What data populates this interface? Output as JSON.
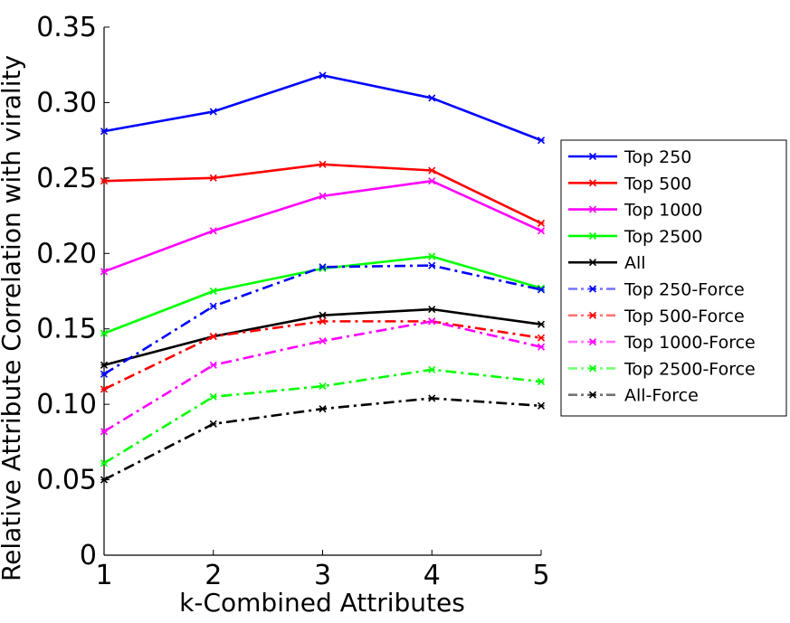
{
  "chart_data": {
    "type": "line",
    "title": "",
    "xlabel": "k-Combined Attributes",
    "ylabel": "Relative Attribute Correlation with virality",
    "xlim": [
      1,
      5
    ],
    "ylim": [
      0,
      0.35
    ],
    "x": [
      1,
      2,
      3,
      4,
      5
    ],
    "x_ticks": [
      "1",
      "2",
      "3",
      "4",
      "5"
    ],
    "y_ticks": [
      {
        "value": 0,
        "label": "0"
      },
      {
        "value": 0.05,
        "label": "0.05"
      },
      {
        "value": 0.1,
        "label": "0.10"
      },
      {
        "value": 0.15,
        "label": "0.15"
      },
      {
        "value": 0.2,
        "label": "0.20"
      },
      {
        "value": 0.25,
        "label": "0.25"
      },
      {
        "value": 0.3,
        "label": "0.30"
      },
      {
        "value": 0.35,
        "label": "0.35"
      }
    ],
    "grid": false,
    "legend_position": "right",
    "series": [
      {
        "name": "Top 250",
        "color": "#0000ff",
        "style": "solid",
        "values": [
          0.281,
          0.294,
          0.318,
          0.303,
          0.275
        ]
      },
      {
        "name": "Top 500",
        "color": "#ff0000",
        "style": "solid",
        "values": [
          0.248,
          0.25,
          0.259,
          0.255,
          0.22
        ]
      },
      {
        "name": "Top 1000",
        "color": "#ff00ff",
        "style": "solid",
        "values": [
          0.188,
          0.215,
          0.238,
          0.248,
          0.215
        ]
      },
      {
        "name": "Top 2500",
        "color": "#00ff00",
        "style": "solid",
        "values": [
          0.147,
          0.175,
          0.19,
          0.198,
          0.177
        ]
      },
      {
        "name": "All",
        "color": "#000000",
        "style": "solid",
        "values": [
          0.126,
          0.145,
          0.159,
          0.163,
          0.153
        ]
      },
      {
        "name": "Top 250-Force",
        "color": "#0000ff",
        "style": "dashdot",
        "values": [
          0.12,
          0.165,
          0.191,
          0.192,
          0.176
        ]
      },
      {
        "name": "Top 500-Force",
        "color": "#ff0000",
        "style": "dashdot",
        "values": [
          0.11,
          0.145,
          0.155,
          0.155,
          0.144
        ]
      },
      {
        "name": "Top 1000-Force",
        "color": "#ff00ff",
        "style": "dashdot",
        "values": [
          0.082,
          0.126,
          0.142,
          0.155,
          0.138
        ]
      },
      {
        "name": "Top 2500-Force",
        "color": "#00ff00",
        "style": "dashdot",
        "values": [
          0.061,
          0.105,
          0.112,
          0.123,
          0.115
        ]
      },
      {
        "name": "All-Force",
        "color": "#000000",
        "style": "dashdot",
        "values": [
          0.05,
          0.087,
          0.097,
          0.104,
          0.099
        ]
      }
    ]
  }
}
